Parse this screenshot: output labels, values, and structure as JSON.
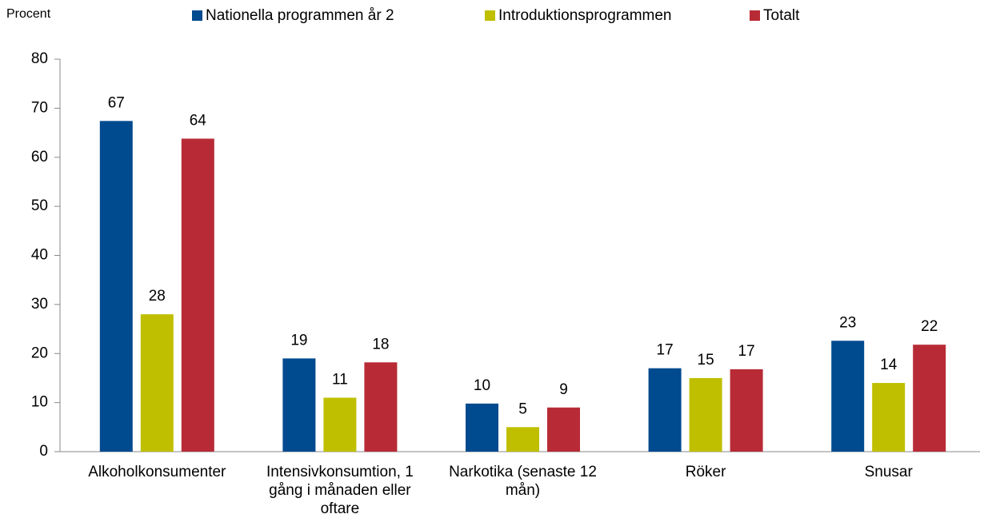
{
  "chart_data": {
    "type": "bar",
    "y_label": "Procent",
    "categories": [
      "Alkoholkonsumenter",
      "Intensivkonsumtion, 1 gång i månaden eller oftare",
      "Narkotika (senaste 12 mån)",
      "Röker",
      "Snusar"
    ],
    "series": [
      {
        "name": "Nationella programmen år 2",
        "color": "#004a8f",
        "values": [
          67.4,
          19,
          9.8,
          17,
          22.6
        ],
        "value_labels": [
          "67",
          "19",
          "10",
          "17",
          "23"
        ]
      },
      {
        "name": "Introduktionsprogrammen",
        "color": "#bfbf00",
        "values": [
          28,
          11,
          5,
          15,
          14
        ],
        "value_labels": [
          "28",
          "11",
          "5",
          "15",
          "14"
        ]
      },
      {
        "name": "Totalt",
        "color": "#b82b36",
        "values": [
          63.8,
          18.2,
          9,
          16.8,
          21.8
        ],
        "value_labels": [
          "64",
          "18",
          "9",
          "17",
          "22"
        ]
      }
    ],
    "ylim": [
      0,
      80
    ],
    "yticks": [
      0,
      10,
      20,
      30,
      40,
      50,
      60,
      70,
      80
    ],
    "grid": false
  }
}
